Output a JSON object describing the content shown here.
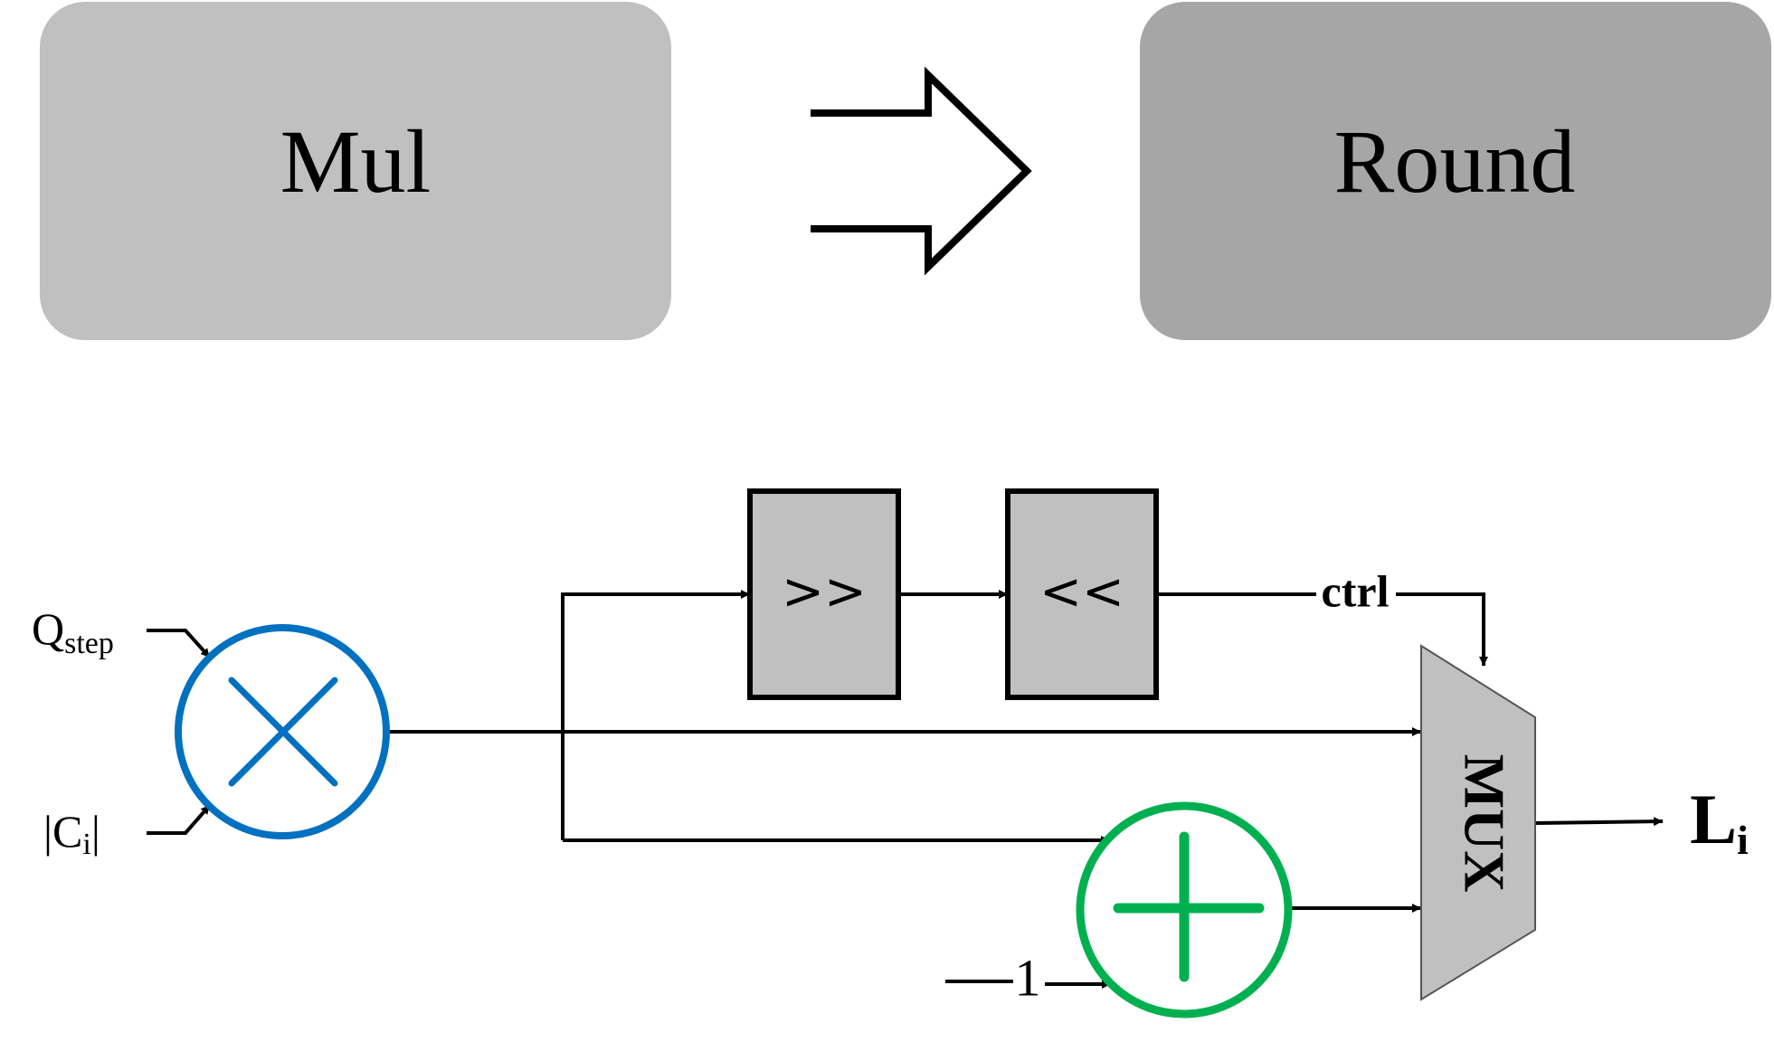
{
  "top": {
    "mul_label": "Mul",
    "round_label": "Round"
  },
  "circuit": {
    "qstep_main": "Q",
    "qstep_sub": "step",
    "ci_pre": "|C",
    "ci_sub": "i",
    "ci_post": "|",
    "shift_right_label": ">>",
    "shift_left_label": "<<",
    "ctrl_label": "ctrl",
    "mux_label": "MUX",
    "minus_one_label": "1",
    "output_main": "L",
    "output_sub": "i"
  },
  "colors": {
    "mul_block": "#c0c0c0",
    "round_block": "#a6a6a6",
    "shift_block": "#c0c0c0",
    "mux": "#c0c0c0",
    "multiplier_ring": "#0070c0",
    "adder_ring": "#00b050",
    "line": "#000000"
  }
}
